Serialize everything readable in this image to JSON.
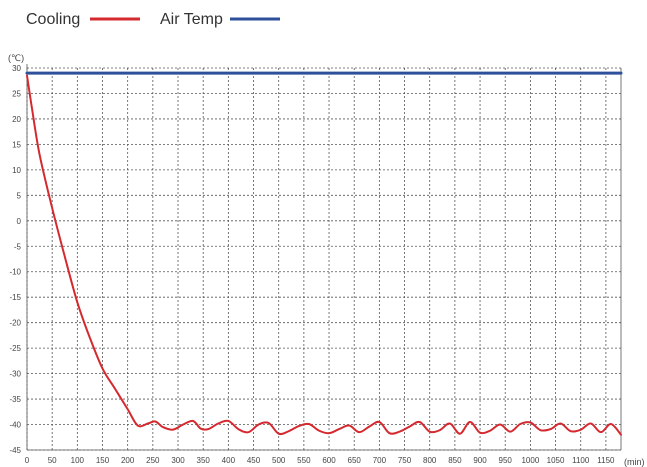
{
  "chart_data": {
    "type": "line",
    "title": "",
    "xlabel": "",
    "ylabel": "",
    "x_unit": "(min)",
    "y_unit": "(℃)",
    "xlim": [
      0,
      1180
    ],
    "ylim": [
      -45,
      30
    ],
    "x_ticks": [
      0,
      50,
      100,
      150,
      200,
      250,
      300,
      350,
      400,
      450,
      500,
      550,
      600,
      650,
      700,
      750,
      800,
      850,
      900,
      950,
      1000,
      1050,
      1100,
      1150
    ],
    "y_ticks": [
      30,
      25,
      20,
      15,
      10,
      5,
      0,
      -5,
      -10,
      -15,
      -20,
      -25,
      -30,
      -35,
      -40,
      -45
    ],
    "grid": true,
    "legend_position": "top-left",
    "series": [
      {
        "name": "Cooling",
        "color": "#d42a2f",
        "x": [
          0,
          10,
          25,
          50,
          75,
          100,
          125,
          150,
          175,
          200,
          220,
          240,
          255,
          270,
          290,
          310,
          330,
          345,
          360,
          380,
          400,
          420,
          440,
          460,
          480,
          500,
          520,
          540,
          560,
          580,
          600,
          620,
          640,
          660,
          680,
          700,
          720,
          740,
          760,
          780,
          800,
          820,
          840,
          860,
          880,
          900,
          920,
          940,
          960,
          980,
          1000,
          1020,
          1040,
          1060,
          1080,
          1100,
          1120,
          1140,
          1160,
          1180
        ],
        "y": [
          28.5,
          22,
          13,
          2.5,
          -7,
          -16,
          -23,
          -29,
          -33,
          -37,
          -40.2,
          -39.8,
          -39.4,
          -40.5,
          -41,
          -40,
          -39.3,
          -40.8,
          -40.9,
          -39.8,
          -39.3,
          -40.9,
          -41.5,
          -40,
          -39.7,
          -41.8,
          -41.3,
          -40.3,
          -39.9,
          -41.2,
          -41.7,
          -40.9,
          -40.2,
          -41.5,
          -40.4,
          -39.5,
          -41.7,
          -41.4,
          -40.4,
          -39.5,
          -41.4,
          -41.1,
          -39.8,
          -41.8,
          -39.5,
          -41.6,
          -41.2,
          -40,
          -41.4,
          -39.9,
          -39.6,
          -41.1,
          -40.9,
          -39.8,
          -41.3,
          -41,
          -39.8,
          -41.5,
          -39.9,
          -42
        ]
      },
      {
        "name": "Air Temp",
        "color": "#2e4f9a",
        "x": [
          0,
          1180
        ],
        "y": [
          29,
          29
        ]
      }
    ]
  }
}
